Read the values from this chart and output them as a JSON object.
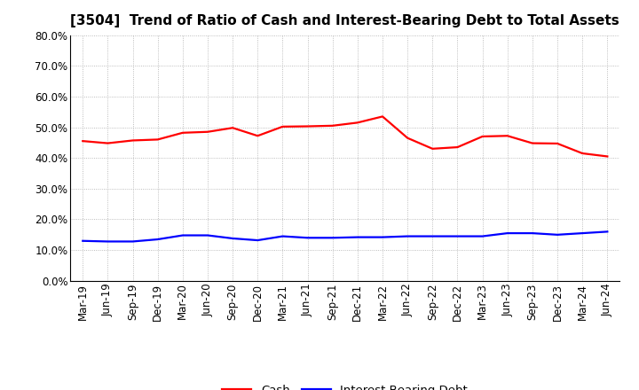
{
  "title": "[3504]  Trend of Ratio of Cash and Interest-Bearing Debt to Total Assets",
  "x_labels": [
    "Mar-19",
    "Jun-19",
    "Sep-19",
    "Dec-19",
    "Mar-20",
    "Jun-20",
    "Sep-20",
    "Dec-20",
    "Mar-21",
    "Jun-21",
    "Sep-21",
    "Dec-21",
    "Mar-22",
    "Jun-22",
    "Sep-22",
    "Dec-22",
    "Mar-23",
    "Jun-23",
    "Sep-23",
    "Dec-23",
    "Mar-24",
    "Jun-24"
  ],
  "cash": [
    45.5,
    44.8,
    45.7,
    46.0,
    48.2,
    48.5,
    49.8,
    47.2,
    50.2,
    50.3,
    50.5,
    51.5,
    53.5,
    46.5,
    43.0,
    43.5,
    47.0,
    47.2,
    44.8,
    44.7,
    41.5,
    40.5
  ],
  "interest_bearing_debt": [
    13.0,
    12.8,
    12.8,
    13.5,
    14.8,
    14.8,
    13.8,
    13.2,
    14.5,
    14.0,
    14.0,
    14.2,
    14.2,
    14.5,
    14.5,
    14.5,
    14.5,
    15.5,
    15.5,
    15.0,
    15.5,
    16.0
  ],
  "cash_color": "#ff0000",
  "debt_color": "#0000ff",
  "ylim": [
    0.0,
    80.0
  ],
  "yticks": [
    0.0,
    10.0,
    20.0,
    30.0,
    40.0,
    50.0,
    60.0,
    70.0,
    80.0
  ],
  "legend_cash": "Cash",
  "legend_debt": "Interest-Bearing Debt",
  "background_color": "#ffffff",
  "grid_color": "#aaaaaa",
  "grid_linestyle": ":",
  "grid_linewidth": 0.6,
  "title_fontsize": 11,
  "tick_fontsize": 8.5,
  "legend_fontsize": 9.5,
  "line_linewidth": 1.6
}
